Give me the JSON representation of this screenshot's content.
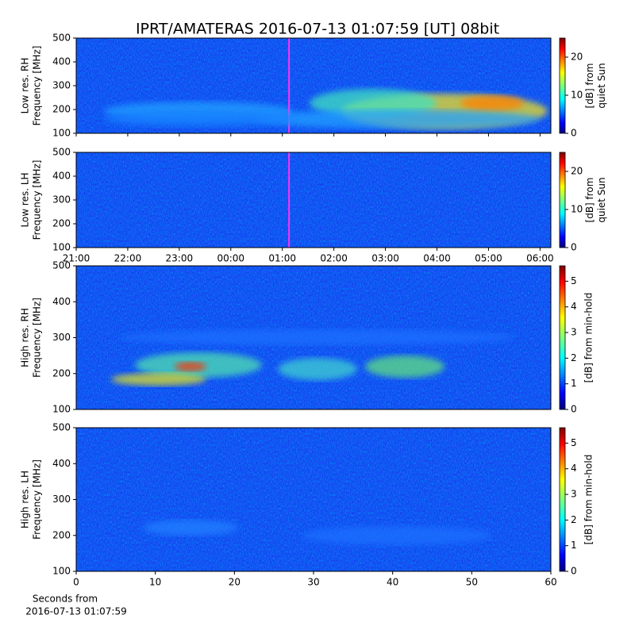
{
  "title": "IPRT/AMATERAS 2016-07-13 01:07:59 [UT]   08bit",
  "chart_data": [
    {
      "type": "heatmap",
      "ylabel": [
        "Low res. RH",
        "Frequency [MHz]"
      ],
      "ylim": [
        100,
        500
      ],
      "yticks": [
        100,
        200,
        300,
        400,
        500
      ],
      "xlim": [
        21,
        30.21
      ],
      "marker_x": 25.13,
      "marker_color": "#ff33ff",
      "colorbar": {
        "label": [
          "[dB] from",
          "quiet Sun"
        ],
        "lim": [
          0,
          25
        ],
        "ticks": [
          0,
          10,
          20
        ]
      }
    },
    {
      "type": "heatmap",
      "ylabel": [
        "Low res. LH",
        "Frequency [MHz]"
      ],
      "ylim": [
        100,
        500
      ],
      "yticks": [
        100,
        200,
        300,
        400,
        500
      ],
      "xlim": [
        21,
        30.21
      ],
      "marker_x": 25.13,
      "marker_color": "#ff33ff",
      "xticks": [
        {
          "value": 21,
          "label": "21:00"
        },
        {
          "value": 22,
          "label": "22:00"
        },
        {
          "value": 23,
          "label": "23:00"
        },
        {
          "value": 24,
          "label": "00:00"
        },
        {
          "value": 25,
          "label": "01:00"
        },
        {
          "value": 26,
          "label": "02:00"
        },
        {
          "value": 27,
          "label": "03:00"
        },
        {
          "value": 28,
          "label": "04:00"
        },
        {
          "value": 29,
          "label": "05:00"
        },
        {
          "value": 30,
          "label": "06:00"
        }
      ],
      "colorbar": {
        "label": [
          "[dB] from",
          "quiet Sun"
        ],
        "lim": [
          0,
          25
        ],
        "ticks": [
          0,
          10,
          20
        ]
      }
    },
    {
      "type": "heatmap",
      "ylabel": [
        "High res. RH",
        "Frequency [MHz]"
      ],
      "ylim": [
        100,
        500
      ],
      "yticks": [
        100,
        200,
        300,
        400,
        500
      ],
      "xlim": [
        0,
        60
      ],
      "colorbar": {
        "label": [
          "[dB] from min-hold"
        ],
        "lim": [
          0,
          5.6
        ],
        "ticks": [
          0,
          1,
          2,
          3,
          4,
          5
        ]
      }
    },
    {
      "type": "heatmap",
      "ylabel": [
        "High res. LH",
        "Frequency [MHz]"
      ],
      "ylim": [
        100,
        500
      ],
      "yticks": [
        100,
        200,
        300,
        400,
        500
      ],
      "xlim": [
        0,
        60
      ],
      "xticks": [
        0,
        10,
        20,
        30,
        40,
        50,
        60
      ],
      "xlabel": [
        "Seconds from",
        "2016-07-13 01:07:59"
      ],
      "colorbar": {
        "label": [
          "[dB] from min-hold"
        ],
        "lim": [
          0,
          5.6
        ],
        "ticks": [
          0,
          1,
          2,
          3,
          4,
          5
        ]
      }
    }
  ]
}
